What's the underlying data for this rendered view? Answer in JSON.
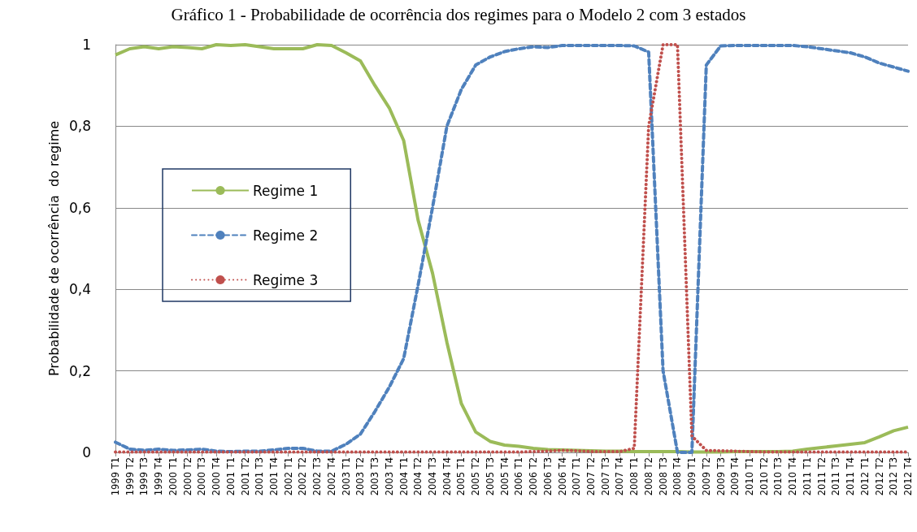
{
  "chart_data": {
    "type": "line",
    "title": "Gráfico 1 - Probabilidade de ocorrência dos regimes para o Modelo 2 com 3 estados",
    "ylabel": "Probabilidade de ocorrência  do regime",
    "categories": [
      "1999 T1",
      "1999 T2",
      "1999 T3",
      "1999 T4",
      "2000 T1",
      "2000 T2",
      "2000 T3",
      "2000 T4",
      "2001 T1",
      "2001 T2",
      "2001 T3",
      "2001 T4",
      "2002 T1",
      "2002 T2",
      "2002 T3",
      "2002 T4",
      "2003 T1",
      "2003 T2",
      "2003 T3",
      "2003 T4",
      "2004 T1",
      "2004 T2",
      "2004 T3",
      "2004 T4",
      "2005 T1",
      "2005 T2",
      "2005 T3",
      "2005 T4",
      "2006 T1",
      "2006 T2",
      "2006 T3",
      "2006 T4",
      "2007 T1",
      "2007 T2",
      "2007 T3",
      "2007 T4",
      "2008 T1",
      "2008 T2",
      "2008 T3",
      "2008 T4",
      "2009 T1",
      "2009 T2",
      "2009 T3",
      "2009 T4",
      "2010 T1",
      "2010 T2",
      "2010 T3",
      "2010 T4",
      "2011 T1",
      "2011 T2",
      "2011 T3",
      "2011 T4",
      "2012 T1",
      "2012 T2",
      "2012 T3",
      "2012 T4"
    ],
    "series": [
      {
        "name": "Regime 1",
        "color": "#9bbb59",
        "line_style": "solid",
        "values": [
          0.975,
          0.99,
          0.995,
          0.99,
          0.995,
          0.993,
          0.99,
          1.0,
          0.998,
          1.0,
          0.995,
          0.99,
          0.99,
          0.99,
          1.0,
          0.998,
          0.98,
          0.96,
          0.9,
          0.845,
          0.765,
          0.57,
          0.44,
          0.27,
          0.12,
          0.05,
          0.027,
          0.018,
          0.015,
          0.01,
          0.007,
          0.006,
          0.005,
          0.004,
          0.003,
          0.003,
          0.002,
          0.002,
          0.002,
          0.002,
          0.001,
          0.001,
          0.001,
          0.002,
          0.002,
          0.002,
          0.002,
          0.003,
          0.008,
          0.012,
          0.016,
          0.02,
          0.024,
          0.038,
          0.053,
          0.062
        ]
      },
      {
        "name": "Regime 2",
        "color": "#4f81bd",
        "line_style": "dashed",
        "values": [
          0.025,
          0.008,
          0.005,
          0.008,
          0.005,
          0.006,
          0.008,
          0.003,
          0.002,
          0.003,
          0.003,
          0.006,
          0.01,
          0.01,
          0.003,
          0.003,
          0.02,
          0.045,
          0.1,
          0.16,
          0.23,
          0.41,
          0.6,
          0.8,
          0.89,
          0.95,
          0.97,
          0.983,
          0.99,
          0.995,
          0.993,
          0.998,
          0.998,
          0.998,
          0.998,
          0.998,
          0.997,
          0.982,
          0.2,
          0.0,
          0.0,
          0.95,
          0.997,
          0.998,
          0.998,
          0.998,
          0.998,
          0.998,
          0.995,
          0.99,
          0.985,
          0.98,
          0.97,
          0.955,
          0.945,
          0.935
        ]
      },
      {
        "name": "Regime 3",
        "color": "#c0504d",
        "line_style": "dotted",
        "values": [
          0.001,
          0.001,
          0.001,
          0.001,
          0.001,
          0.001,
          0.001,
          0.001,
          0.001,
          0.001,
          0.001,
          0.001,
          0.001,
          0.001,
          0.001,
          0.001,
          0.001,
          0.001,
          0.001,
          0.001,
          0.001,
          0.001,
          0.001,
          0.001,
          0.001,
          0.001,
          0.001,
          0.001,
          0.001,
          0.002,
          0.003,
          0.005,
          0.004,
          0.002,
          0.002,
          0.002,
          0.01,
          0.8,
          1.0,
          1.0,
          0.04,
          0.005,
          0.004,
          0.003,
          0.002,
          0.001,
          0.001,
          0.001,
          0.001,
          0.001,
          0.001,
          0.001,
          0.001,
          0.001,
          0.001,
          0.001
        ]
      }
    ],
    "ylim": [
      0,
      1
    ],
    "yticks": [
      0,
      {
        "value": 0.2,
        "label": "0,2"
      },
      {
        "value": 0.4,
        "label": "0,4"
      },
      {
        "value": 0.6,
        "label": "0,6"
      },
      {
        "value": 0.8,
        "label": "0,8"
      },
      1
    ],
    "grid": "y",
    "legend": "left",
    "marker": "none"
  }
}
